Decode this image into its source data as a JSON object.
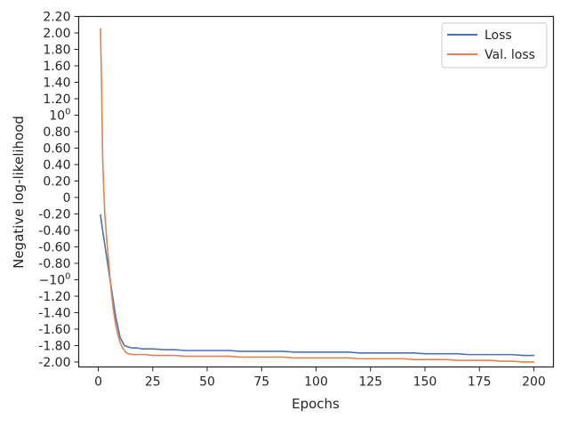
{
  "chart_data": {
    "type": "line",
    "title": "",
    "xlabel": "Epochs",
    "ylabel": "Negative log-likelihood",
    "xlim": [
      -9,
      209
    ],
    "ylim": [
      -2.06,
      2.2
    ],
    "grid": false,
    "legend_position": "top-right",
    "x_ticks": [
      0,
      25,
      50,
      75,
      100,
      125,
      150,
      175,
      200
    ],
    "y_ticks": [
      {
        "value": 2.2,
        "label": "2.20"
      },
      {
        "value": 2.0,
        "label": "2.00"
      },
      {
        "value": 1.8,
        "label": "1.80"
      },
      {
        "value": 1.6,
        "label": "1.60"
      },
      {
        "value": 1.4,
        "label": "1.40"
      },
      {
        "value": 1.2,
        "label": "1.20"
      },
      {
        "value": 1.0,
        "label": "10",
        "sup": "0"
      },
      {
        "value": 0.8,
        "label": "0.80"
      },
      {
        "value": 0.6,
        "label": "0.60"
      },
      {
        "value": 0.4,
        "label": "0.40"
      },
      {
        "value": 0.2,
        "label": "0.20"
      },
      {
        "value": 0.0,
        "label": "0"
      },
      {
        "value": -0.2,
        "label": "-0.20"
      },
      {
        "value": -0.4,
        "label": "-0.40"
      },
      {
        "value": -0.6,
        "label": "-0.60"
      },
      {
        "value": -0.8,
        "label": "-0.80"
      },
      {
        "value": -1.0,
        "label": "−10",
        "sup": "0"
      },
      {
        "value": -1.2,
        "label": "-1.20"
      },
      {
        "value": -1.4,
        "label": "-1.40"
      },
      {
        "value": -1.6,
        "label": "-1.60"
      },
      {
        "value": -1.8,
        "label": "-1.80"
      },
      {
        "value": -2.0,
        "label": "-2.00"
      }
    ],
    "series": [
      {
        "name": "Loss",
        "color": "#4c72b0",
        "x": [
          1,
          2,
          4,
          6,
          8,
          10,
          12,
          14,
          16,
          18,
          20,
          22,
          25,
          30,
          35,
          40,
          45,
          50,
          55,
          60,
          65,
          70,
          75,
          80,
          85,
          90,
          95,
          100,
          105,
          110,
          115,
          120,
          125,
          130,
          135,
          140,
          145,
          150,
          155,
          160,
          165,
          170,
          175,
          180,
          185,
          190,
          195,
          200
        ],
        "y": [
          -0.21,
          -0.4,
          -0.75,
          -1.1,
          -1.45,
          -1.7,
          -1.8,
          -1.82,
          -1.83,
          -1.83,
          -1.84,
          -1.84,
          -1.84,
          -1.85,
          -1.85,
          -1.86,
          -1.86,
          -1.86,
          -1.86,
          -1.86,
          -1.87,
          -1.87,
          -1.87,
          -1.87,
          -1.87,
          -1.88,
          -1.88,
          -1.88,
          -1.88,
          -1.88,
          -1.88,
          -1.89,
          -1.89,
          -1.89,
          -1.89,
          -1.89,
          -1.89,
          -1.9,
          -1.9,
          -1.9,
          -1.9,
          -1.91,
          -1.91,
          -1.91,
          -1.91,
          -1.91,
          -1.92,
          -1.92
        ]
      },
      {
        "name": "Val. loss",
        "color": "#dd8452",
        "x": [
          1,
          1.5,
          2,
          2.5,
          3,
          4,
          5,
          6,
          7,
          8,
          9,
          10,
          11,
          12,
          13,
          14,
          16,
          18,
          20,
          22,
          25,
          30,
          35,
          40,
          45,
          50,
          55,
          60,
          65,
          70,
          75,
          80,
          85,
          90,
          95,
          100,
          105,
          110,
          115,
          120,
          125,
          130,
          135,
          140,
          145,
          150,
          155,
          160,
          165,
          170,
          175,
          180,
          185,
          190,
          195,
          200
        ],
        "y": [
          2.05,
          1.4,
          0.5,
          0.1,
          -0.2,
          -0.55,
          -0.85,
          -1.15,
          -1.38,
          -1.55,
          -1.67,
          -1.76,
          -1.82,
          -1.86,
          -1.89,
          -1.9,
          -1.91,
          -1.91,
          -1.91,
          -1.91,
          -1.92,
          -1.92,
          -1.92,
          -1.93,
          -1.93,
          -1.93,
          -1.93,
          -1.93,
          -1.94,
          -1.94,
          -1.94,
          -1.94,
          -1.94,
          -1.95,
          -1.95,
          -1.95,
          -1.95,
          -1.95,
          -1.95,
          -1.96,
          -1.96,
          -1.96,
          -1.96,
          -1.96,
          -1.97,
          -1.97,
          -1.97,
          -1.97,
          -1.98,
          -1.98,
          -1.98,
          -1.98,
          -1.99,
          -1.99,
          -2.0,
          -2.0
        ]
      }
    ]
  }
}
